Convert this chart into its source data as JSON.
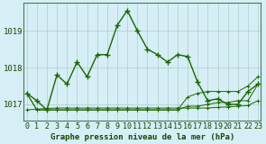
{
  "title": "Graphe pression niveau de la mer (hPa)",
  "background_color": "#d6eef5",
  "grid_color": "#b0cccc",
  "line_color": "#1a6600",
  "x_labels": [
    "0",
    "1",
    "2",
    "3",
    "4",
    "5",
    "6",
    "7",
    "8",
    "9",
    "10",
    "11",
    "12",
    "13",
    "14",
    "15",
    "16",
    "17",
    "18",
    "19",
    "20",
    "21",
    "22",
    "23"
  ],
  "yticks": [
    1017,
    1018,
    1019
  ],
  "ylim": [
    1016.55,
    1019.75
  ],
  "xlim": [
    -0.3,
    23.3
  ],
  "main_series": [
    1017.3,
    1017.1,
    1016.85,
    1017.8,
    1017.55,
    1018.15,
    1017.75,
    1018.35,
    1018.35,
    1019.15,
    1019.55,
    1019.0,
    1018.5,
    1018.35,
    1018.15,
    1018.35,
    1018.3,
    1017.6,
    1017.1,
    1017.15,
    1017.0,
    1017.0,
    1017.35,
    1017.55
  ],
  "stat_line1": [
    1016.85,
    1016.87,
    1016.89,
    1016.9,
    1016.9,
    1016.9,
    1016.9,
    1016.9,
    1016.9,
    1016.9,
    1016.9,
    1016.9,
    1016.9,
    1016.9,
    1016.9,
    1016.9,
    1016.9,
    1016.9,
    1016.9,
    1016.92,
    1016.93,
    1016.95,
    1016.97,
    1017.1
  ],
  "stat_line2": [
    1017.3,
    1016.85,
    1016.85,
    1016.85,
    1016.85,
    1016.85,
    1016.85,
    1016.85,
    1016.85,
    1016.85,
    1016.85,
    1016.85,
    1016.85,
    1016.85,
    1016.85,
    1016.85,
    1016.95,
    1016.95,
    1017.0,
    1017.05,
    1017.05,
    1017.1,
    1017.1,
    1017.55
  ],
  "stat_line3": [
    1017.3,
    1016.85,
    1016.85,
    1016.85,
    1016.85,
    1016.85,
    1016.85,
    1016.85,
    1016.85,
    1016.85,
    1016.85,
    1016.85,
    1016.85,
    1016.85,
    1016.85,
    1016.85,
    1017.2,
    1017.3,
    1017.35,
    1017.35,
    1017.35,
    1017.35,
    1017.5,
    1017.75
  ],
  "title_fontsize": 6.5,
  "tick_fontsize": 6.0,
  "ylabel_fontsize": 6.5
}
